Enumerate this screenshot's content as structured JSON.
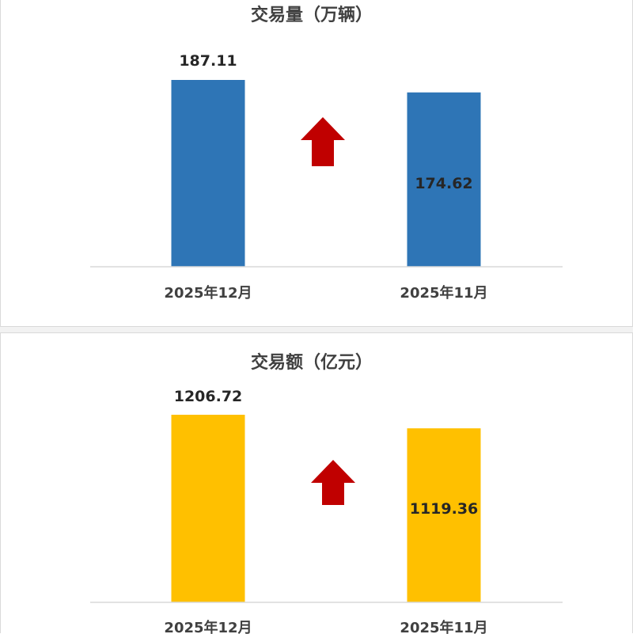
{
  "chart_data": [
    {
      "type": "bar",
      "title": "交易量（万辆）",
      "categories": [
        "2025年12月",
        "2025年11月"
      ],
      "values": [
        187.11,
        174.62
      ],
      "value_labels": [
        "187.11",
        "174.62"
      ],
      "bar_color": "#2E75B6",
      "arrow_color": "#C00000",
      "arrow_direction": "up",
      "ylim": [
        0,
        187.11
      ],
      "grid": false,
      "legend": "none"
    },
    {
      "type": "bar",
      "title": "交易额（亿元）",
      "categories": [
        "2025年12月",
        "2025年11月"
      ],
      "values": [
        1206.72,
        1119.36
      ],
      "value_labels": [
        "1206.72",
        "1119.36"
      ],
      "bar_color": "#FFC000",
      "arrow_color": "#C00000",
      "arrow_direction": "up",
      "ylim": [
        0,
        1206.72
      ],
      "grid": false,
      "legend": "none"
    }
  ]
}
